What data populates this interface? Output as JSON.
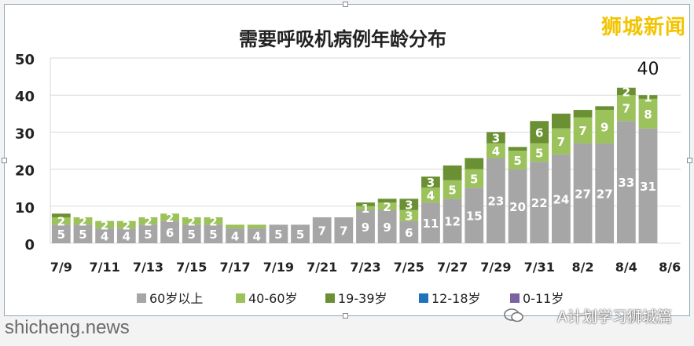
{
  "watermarks": {
    "top_right": "狮城新闻",
    "bottom_left": "shicheng.news",
    "bottom_right": "A计划学习狮城篇"
  },
  "colors": {
    "age_60_plus": "#a6a6a6",
    "age_40_60": "#9bc25b",
    "age_19_39": "#6b9034",
    "age_12_18": "#1f72bc",
    "age_0_11": "#7b62a3"
  },
  "chart_data": {
    "type": "bar",
    "stacked": true,
    "title": "需要呼吸机病例年龄分布",
    "categories": [
      "7/9",
      "7/10",
      "7/11",
      "7/12",
      "7/13",
      "7/14",
      "7/15",
      "7/16",
      "7/17",
      "7/18",
      "7/19",
      "7/20",
      "7/21",
      "7/22",
      "7/23",
      "7/24",
      "7/25",
      "7/26",
      "7/27",
      "7/28",
      "7/29",
      "7/30",
      "7/31",
      "8/1",
      "8/2",
      "8/3",
      "8/4",
      "8/5",
      "8/6"
    ],
    "x_tick_labels": [
      "7/9",
      "7/11",
      "7/13",
      "7/15",
      "7/17",
      "7/19",
      "7/21",
      "7/23",
      "7/25",
      "7/27",
      "7/29",
      "7/31",
      "8/2",
      "8/4",
      "8/6"
    ],
    "ylim": [
      0,
      50
    ],
    "y_ticks": [
      0,
      10,
      20,
      30,
      40,
      50
    ],
    "grid": true,
    "legend_position": "bottom",
    "series": [
      {
        "name": "60岁以上",
        "color_key": "age_60_plus",
        "values": [
          5,
          5,
          4,
          4,
          5,
          6,
          5,
          5,
          4,
          4,
          5,
          5,
          7,
          7,
          9,
          9,
          6,
          11,
          12,
          15,
          23,
          20,
          22,
          24,
          27,
          27,
          33,
          31,
          null
        ]
      },
      {
        "name": "40-60岁",
        "color_key": "age_40_60",
        "values": [
          2,
          2,
          2,
          2,
          2,
          2,
          2,
          2,
          1,
          1,
          0,
          0,
          0,
          0,
          1,
          2,
          3,
          4,
          5,
          5,
          4,
          5,
          5,
          7,
          7,
          9,
          7,
          8,
          null
        ]
      },
      {
        "name": "19-39岁",
        "color_key": "age_19_39",
        "values": [
          1,
          0,
          0,
          0,
          0,
          0,
          0,
          0,
          0,
          0,
          0,
          0,
          0,
          0,
          1,
          1,
          3,
          3,
          4,
          3,
          3,
          1,
          6,
          4,
          2,
          1,
          2,
          1,
          null
        ]
      },
      {
        "name": "12-18岁",
        "color_key": "age_12_18",
        "values": [
          0,
          0,
          0,
          0,
          0,
          0,
          0,
          0,
          0,
          0,
          0,
          0,
          0,
          0,
          0,
          0,
          0,
          0,
          0,
          0,
          0,
          0,
          0,
          0,
          0,
          0,
          0,
          0,
          null
        ]
      },
      {
        "name": "0-11岁",
        "color_key": "age_0_11",
        "values": [
          0,
          0,
          0,
          0,
          0,
          0,
          0,
          0,
          0,
          0,
          0,
          0,
          0,
          0,
          0,
          0,
          0,
          0,
          0,
          0,
          0,
          0,
          0,
          0,
          0,
          0,
          0,
          0,
          null
        ]
      }
    ],
    "segment_labels": {
      "60岁以上": [
        5,
        5,
        4,
        4,
        5,
        6,
        5,
        5,
        4,
        4,
        5,
        5,
        7,
        7,
        9,
        9,
        6,
        11,
        12,
        15,
        23,
        20,
        22,
        24,
        27,
        27,
        33,
        31,
        null
      ],
      "40-60岁": [
        2,
        2,
        2,
        2,
        2,
        2,
        2,
        2,
        null,
        null,
        null,
        null,
        null,
        null,
        1,
        2,
        3,
        4,
        5,
        5,
        4,
        5,
        5,
        7,
        7,
        9,
        7,
        8,
        null
      ],
      "19-39岁": [
        null,
        null,
        null,
        null,
        null,
        null,
        null,
        null,
        null,
        null,
        null,
        null,
        null,
        null,
        null,
        null,
        3,
        3,
        null,
        null,
        3,
        null,
        6,
        null,
        null,
        null,
        2,
        1,
        null
      ]
    },
    "annotations": [
      {
        "category": "8/5",
        "text": "40"
      }
    ]
  }
}
